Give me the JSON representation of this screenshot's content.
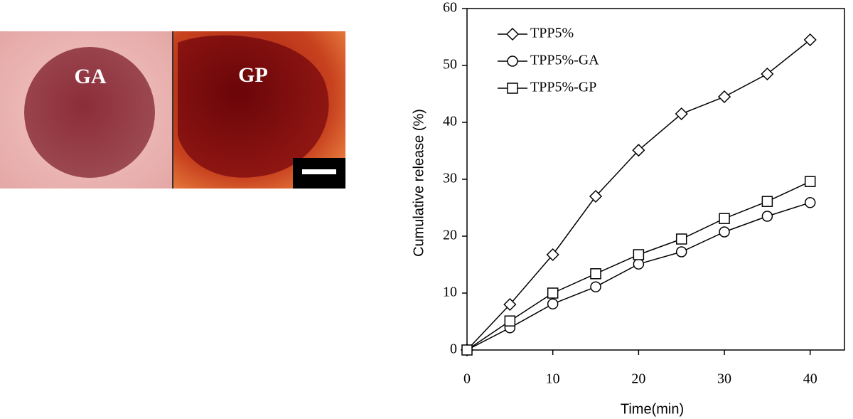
{
  "images": [
    {
      "label": "GA"
    },
    {
      "label": "GP"
    }
  ],
  "chart_data": {
    "type": "line",
    "xlabel": "Time(min)",
    "ylabel": "Cumulative release (%)",
    "x": [
      0,
      5,
      10,
      15,
      20,
      25,
      30,
      35,
      40
    ],
    "xlim": [
      0,
      44
    ],
    "xticks": [
      0,
      10,
      20,
      30,
      40
    ],
    "ylim": [
      0,
      60
    ],
    "yticks": [
      0,
      10,
      20,
      30,
      40,
      50,
      60
    ],
    "legend": "upper left",
    "series": [
      {
        "name": "TPP5%",
        "color": "#000000",
        "marker": "diamond",
        "values": [
          0,
          8,
          16.75,
          27,
          35.1,
          41.5,
          44.5,
          48.5,
          54.5
        ]
      },
      {
        "name": "TPP5%-GA",
        "color": "#000000",
        "marker": "circle",
        "values": [
          0,
          3.9,
          8.1,
          11.1,
          15.1,
          17.25,
          20.75,
          23.5,
          25.9
        ]
      },
      {
        "name": "TPP5%-GP",
        "color": "#000000",
        "marker": "square",
        "values": [
          0,
          5.1,
          10,
          13.4,
          16.75,
          19.5,
          23.1,
          26.1,
          29.6
        ]
      }
    ]
  }
}
